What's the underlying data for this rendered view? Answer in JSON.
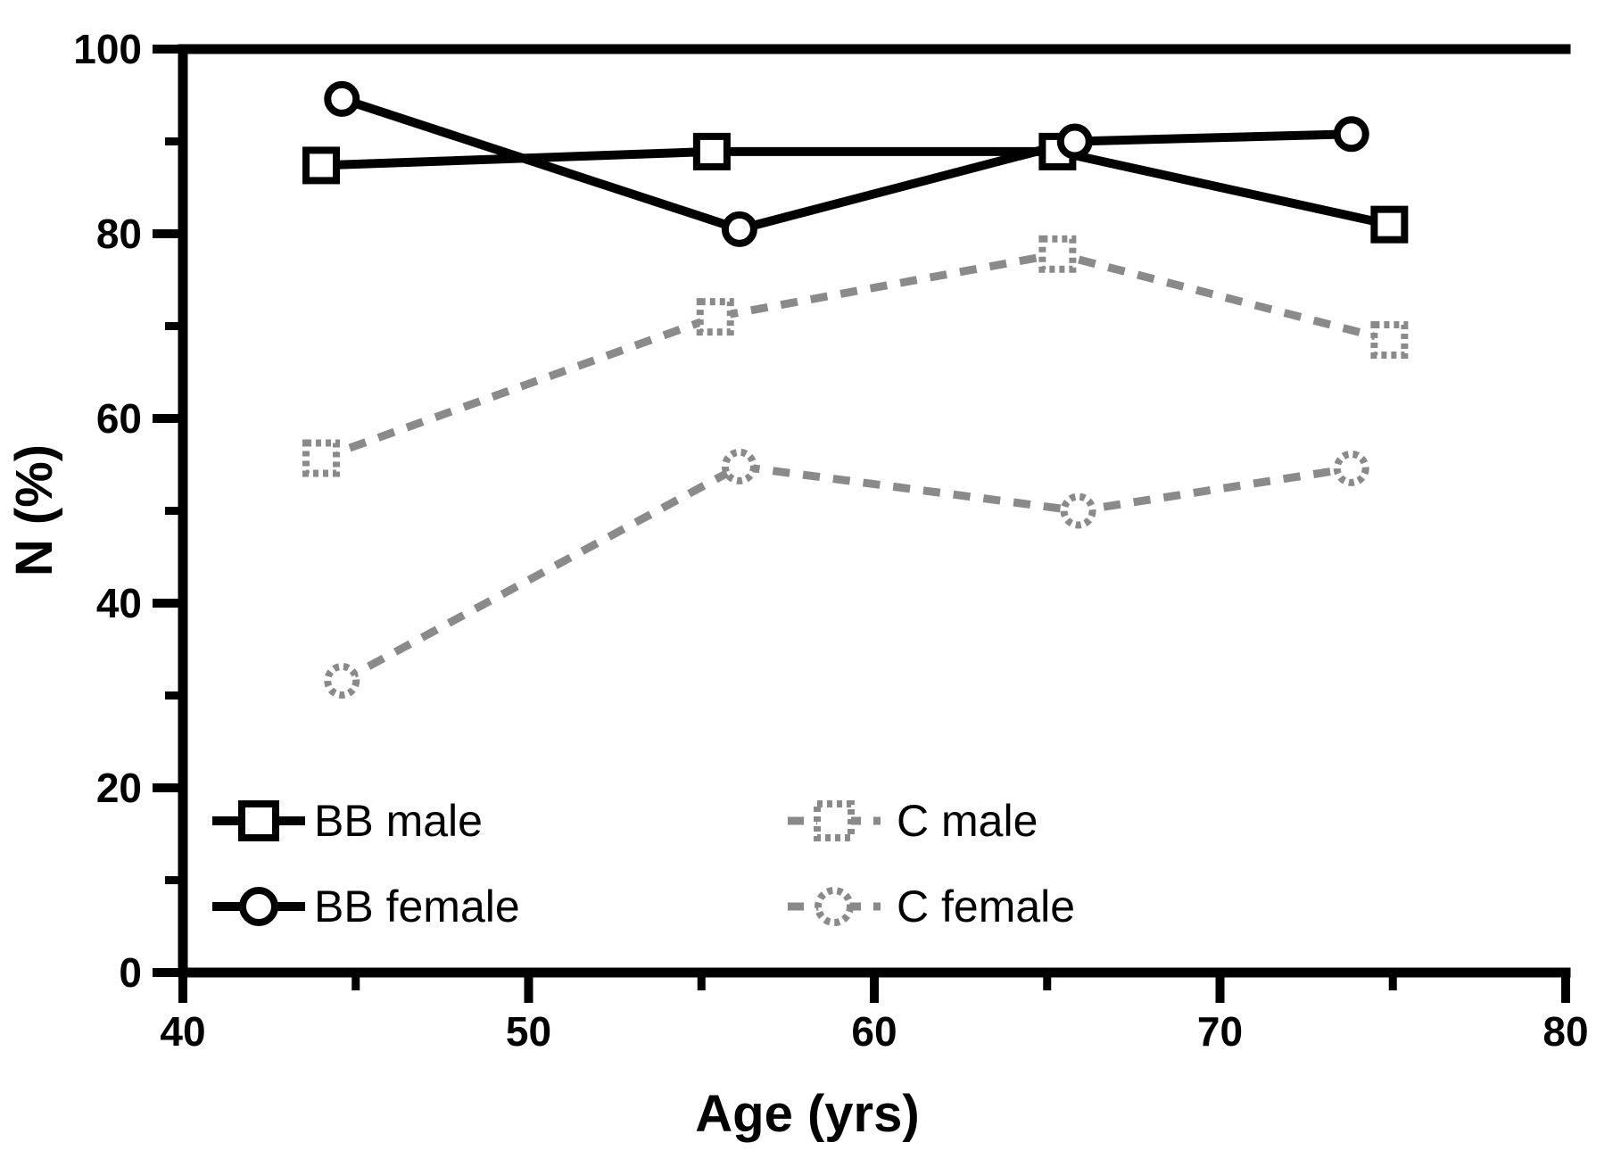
{
  "figure": {
    "background_color": "#ffffff",
    "axis_color": "#000000"
  },
  "chart_data": {
    "type": "line",
    "title": "",
    "xlabel": "Age (yrs)",
    "ylabel": "N (%)",
    "xlim": [
      40,
      80
    ],
    "ylim": [
      0,
      100
    ],
    "x_major_ticks": [
      40,
      50,
      60,
      70,
      80
    ],
    "x_minor_ticks": [
      45,
      55,
      65,
      75
    ],
    "y_major_ticks": [
      0,
      20,
      40,
      60,
      80,
      100
    ],
    "y_minor_ticks": [
      10,
      30,
      50,
      70,
      90
    ],
    "grid": false,
    "legend_position": "inside bottom-left, two columns",
    "series": [
      {
        "name": "BB male",
        "color": "#000000",
        "line_style": "solid",
        "marker": "square",
        "points": [
          [
            44.0,
            87.4
          ],
          [
            55.3,
            88.9
          ],
          [
            65.3,
            88.9
          ],
          [
            74.9,
            81.0
          ]
        ]
      },
      {
        "name": "BB female",
        "color": "#000000",
        "line_style": "solid",
        "marker": "circle",
        "points": [
          [
            44.6,
            94.6
          ],
          [
            56.1,
            80.5
          ],
          [
            65.8,
            90.0
          ],
          [
            73.8,
            90.8
          ]
        ]
      },
      {
        "name": "C male",
        "color": "#8a8a8a",
        "line_style": "dashed",
        "marker": "square",
        "points": [
          [
            44.0,
            55.7
          ],
          [
            55.4,
            71.0
          ],
          [
            65.3,
            77.8
          ],
          [
            74.9,
            68.5
          ]
        ]
      },
      {
        "name": "C female",
        "color": "#8a8a8a",
        "line_style": "dashed",
        "marker": "circle",
        "points": [
          [
            44.6,
            31.6
          ],
          [
            56.1,
            54.8
          ],
          [
            65.9,
            50.0
          ],
          [
            73.8,
            54.6
          ]
        ]
      }
    ],
    "legend_columns": [
      {
        "series_indexes": [
          0,
          1
        ]
      },
      {
        "series_indexes": [
          2,
          3
        ]
      }
    ]
  }
}
